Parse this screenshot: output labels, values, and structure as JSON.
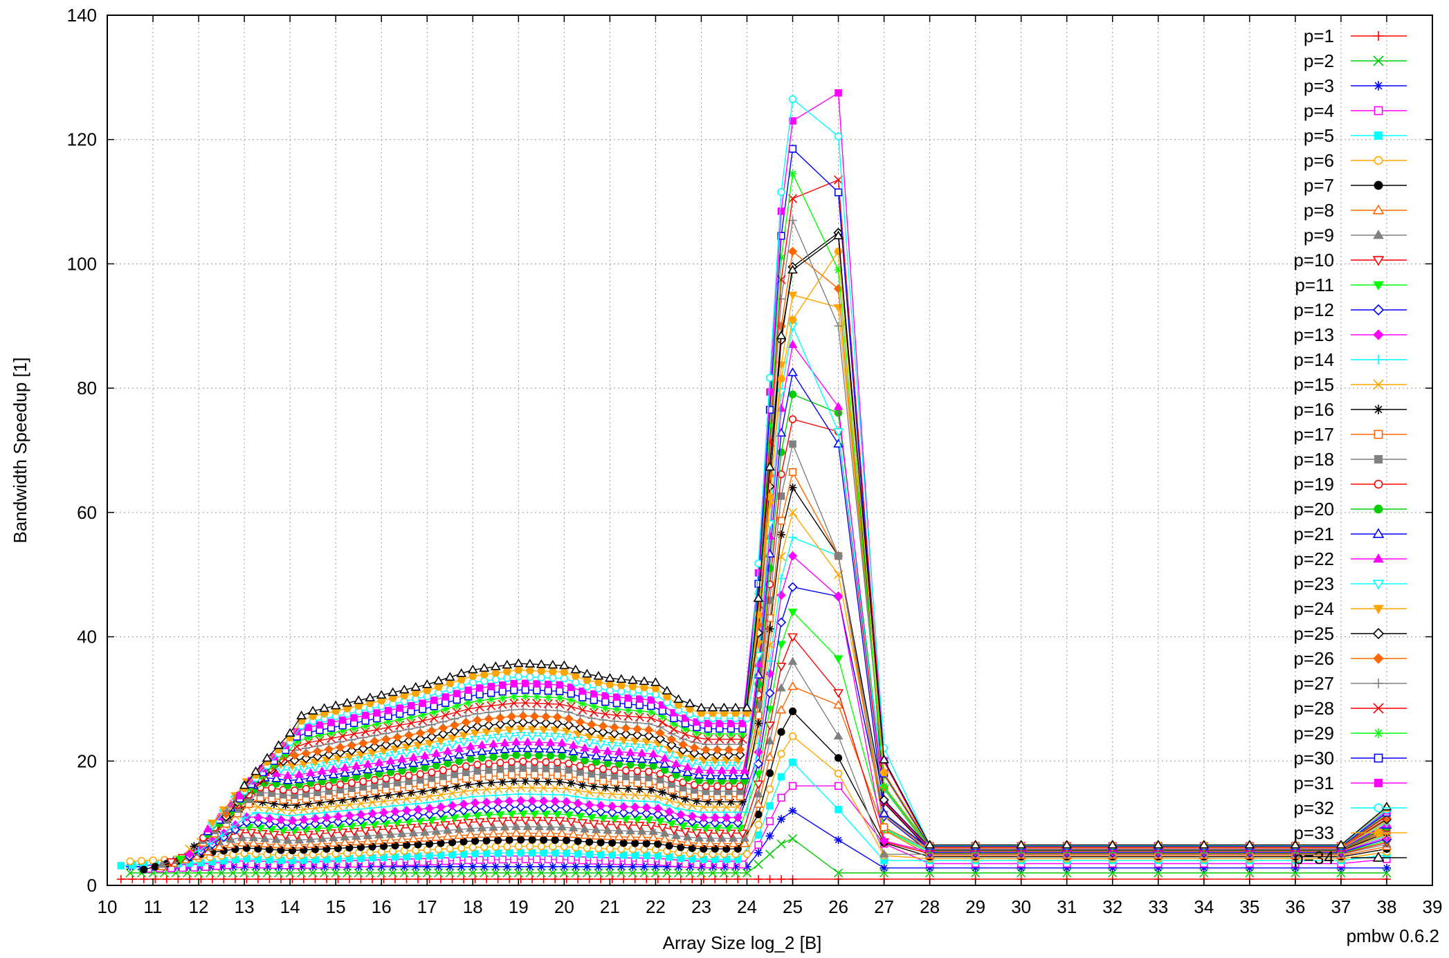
{
  "chart_data": {
    "type": "line",
    "title": "",
    "xlabel": "Array Size log_2 [B]",
    "ylabel": "Bandwidth Speedup [1]",
    "footer": "pmbw 0.6.2",
    "xlim": [
      10,
      39
    ],
    "ylim": [
      0,
      140
    ],
    "x_ticks": [
      "10",
      "11",
      "12",
      "13",
      "14",
      "15",
      "16",
      "17",
      "18",
      "19",
      "20",
      "21",
      "22",
      "23",
      "24",
      "25",
      "26",
      "27",
      "28",
      "29",
      "30",
      "31",
      "32",
      "33",
      "34",
      "35",
      "36",
      "37",
      "38",
      "39"
    ],
    "y_ticks": [
      "0",
      "20",
      "40",
      "60",
      "80",
      "100",
      "120",
      "140"
    ],
    "grid": true,
    "legend_position": "top-right",
    "series": [
      {
        "name": "p=1",
        "color": "#ff0000",
        "marker": "plus",
        "start": 10.3,
        "plateau": 1,
        "peak25": 1,
        "peak26": 1,
        "tail": 1
      },
      {
        "name": "p=2",
        "color": "#00cc00",
        "marker": "x",
        "start": 10.5,
        "plateau": 2,
        "peak25": 7.5,
        "peak26": 2,
        "tail": 2
      },
      {
        "name": "p=3",
        "color": "#0000ff",
        "marker": "star",
        "start": 10.5,
        "plateau": 3,
        "peak25": 12,
        "peak26": 7.3,
        "tail": 2.8
      },
      {
        "name": "p=4",
        "color": "#ff00ff",
        "marker": "square-open",
        "start": 10.9,
        "plateau": 4,
        "peak25": 16,
        "peak26": 16,
        "tail": 3.5
      },
      {
        "name": "p=5",
        "color": "#00ffff",
        "marker": "square-filled",
        "start": 10.3,
        "plateau": 5,
        "peak25": 19.8,
        "peak26": 12.2,
        "tail": 4
      },
      {
        "name": "p=6",
        "color": "#ffa500",
        "marker": "circle-open",
        "start": 10.5,
        "plateau": 6,
        "peak25": 24,
        "peak26": 18,
        "tail": 4.3
      },
      {
        "name": "p=7",
        "color": "#000000",
        "marker": "circle-filled",
        "start": 10.8,
        "plateau": 7,
        "peak25": 28,
        "peak26": 20.5,
        "tail": 4.6
      },
      {
        "name": "p=8",
        "color": "#ff6600",
        "marker": "triangle-open",
        "start": 11.2,
        "plateau": 8,
        "peak25": 32,
        "peak26": 29,
        "tail": 4.8
      },
      {
        "name": "p=9",
        "color": "#808080",
        "marker": "triangle-filled",
        "start": 11.2,
        "plateau": 9,
        "peak25": 36,
        "peak26": 24,
        "tail": 5
      },
      {
        "name": "p=10",
        "color": "#ff0000",
        "marker": "triangle-down-open",
        "start": 11.4,
        "plateau": 10,
        "peak25": 40,
        "peak26": 31,
        "tail": 5.1
      },
      {
        "name": "p=11",
        "color": "#00ff00",
        "marker": "triangle-down-filled",
        "start": 11.6,
        "plateau": 11,
        "peak25": 44,
        "peak26": 36.5,
        "tail": 5.2
      },
      {
        "name": "p=12",
        "color": "#0000ff",
        "marker": "diamond-open",
        "start": 11.8,
        "plateau": 12,
        "peak25": 48,
        "peak26": 46.5,
        "tail": 5.3
      },
      {
        "name": "p=13",
        "color": "#ff00ff",
        "marker": "diamond-filled",
        "start": 11.8,
        "plateau": 13,
        "peak25": 53,
        "peak26": 46.5,
        "tail": 5.4
      },
      {
        "name": "p=14",
        "color": "#00ffff",
        "marker": "plus",
        "start": 12.0,
        "plateau": 14,
        "peak25": 56,
        "peak26": 53,
        "tail": 5.5
      },
      {
        "name": "p=15",
        "color": "#ffa500",
        "marker": "x",
        "start": 11.8,
        "plateau": 15,
        "peak25": 60,
        "peak26": 50,
        "tail": 5.5
      },
      {
        "name": "p=16",
        "color": "#000000",
        "marker": "star",
        "start": 11.9,
        "plateau": 16,
        "peak25": 64,
        "peak26": 53,
        "tail": 5.6
      },
      {
        "name": "p=17",
        "color": "#ff6600",
        "marker": "square-open",
        "start": 12.1,
        "plateau": 17,
        "peak25": 66.5,
        "peak26": 53,
        "tail": 5.7
      },
      {
        "name": "p=18",
        "color": "#808080",
        "marker": "square-filled",
        "start": 12.1,
        "plateau": 18,
        "peak25": 71,
        "peak26": 53,
        "tail": 5.7
      },
      {
        "name": "p=19",
        "color": "#ff0000",
        "marker": "circle-open",
        "start": 12.1,
        "plateau": 19,
        "peak25": 75,
        "peak26": 73,
        "tail": 5.8
      },
      {
        "name": "p=20",
        "color": "#00cc00",
        "marker": "circle-filled",
        "start": 12.2,
        "plateau": 20,
        "peak25": 79,
        "peak26": 76,
        "tail": 5.8
      },
      {
        "name": "p=21",
        "color": "#0000ff",
        "marker": "triangle-open",
        "start": 12.2,
        "plateau": 21,
        "peak25": 82.5,
        "peak26": 71,
        "tail": 5.9
      },
      {
        "name": "p=22",
        "color": "#ff00ff",
        "marker": "triangle-filled",
        "start": 12.2,
        "plateau": 22,
        "peak25": 87,
        "peak26": 77,
        "tail": 5.9
      },
      {
        "name": "p=23",
        "color": "#00ffff",
        "marker": "triangle-down-open",
        "start": 12.3,
        "plateau": 23,
        "peak25": 90,
        "peak26": 73,
        "tail": 6
      },
      {
        "name": "p=24",
        "color": "#ffa500",
        "marker": "triangle-down-filled",
        "start": 12.3,
        "plateau": 24,
        "peak25": 95,
        "peak26": 93,
        "tail": 6
      },
      {
        "name": "p=25",
        "color": "#000000",
        "marker": "diamond-open",
        "start": 12.6,
        "plateau": 25,
        "peak25": 99.5,
        "peak26": 105,
        "tail": 6.1
      },
      {
        "name": "p=26",
        "color": "#ff6600",
        "marker": "diamond-filled",
        "start": 12.6,
        "plateau": 26,
        "peak25": 102,
        "peak26": 96,
        "tail": 6.1
      },
      {
        "name": "p=27",
        "color": "#808080",
        "marker": "plus",
        "start": 12.6,
        "plateau": 27,
        "peak25": 107,
        "peak26": 90,
        "tail": 6.2
      },
      {
        "name": "p=28",
        "color": "#ff0000",
        "marker": "x",
        "start": 12.9,
        "plateau": 28,
        "peak25": 110.5,
        "peak26": 113.5,
        "tail": 6.2
      },
      {
        "name": "p=29",
        "color": "#00ff00",
        "marker": "star",
        "start": 12.9,
        "plateau": 29,
        "peak25": 114.5,
        "peak26": 99,
        "tail": 6.3
      },
      {
        "name": "p=30",
        "color": "#0000ff",
        "marker": "square-open",
        "start": 12.9,
        "plateau": 30,
        "peak25": 118.5,
        "peak26": 111.5,
        "tail": 6.3
      },
      {
        "name": "p=31",
        "color": "#ff00ff",
        "marker": "square-filled",
        "start": 12.9,
        "plateau": 31,
        "peak25": 123,
        "peak26": 127.5,
        "tail": 6.4
      },
      {
        "name": "p=32",
        "color": "#00ffff",
        "marker": "circle-open",
        "start": 13.0,
        "plateau": 32,
        "peak25": 126.5,
        "peak26": 120.5,
        "tail": 6.4
      },
      {
        "name": "p=33",
        "color": "#ffa500",
        "marker": "circle-filled",
        "start": 13.0,
        "plateau": 33,
        "peak25": 91,
        "peak26": 102,
        "tail": 6.5
      },
      {
        "name": "p=34",
        "color": "#000000",
        "marker": "triangle-open",
        "start": 13.0,
        "plateau": 34,
        "peak25": 99,
        "peak26": 104.5,
        "tail": 6.5
      }
    ]
  }
}
